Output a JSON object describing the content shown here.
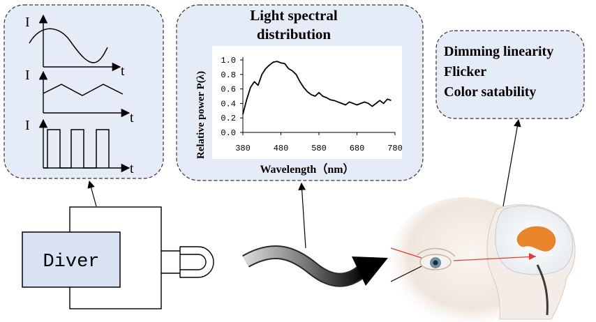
{
  "waveforms": {
    "axis_y_label": "I",
    "axis_x_label": "t",
    "types": [
      "sine",
      "triangle",
      "square"
    ]
  },
  "spectrum_panel": {
    "title_line1": "Light spectral",
    "title_line2": "distribution",
    "ylabel": "Relative power P(λ)",
    "xlabel": "Wavelength（nm）",
    "yticks": [
      "1.0",
      "0.8",
      "0.6",
      "0.4",
      "0.2",
      "0.0"
    ],
    "xticks": [
      "380",
      "480",
      "580",
      "680",
      "780"
    ]
  },
  "chart_data": {
    "type": "line",
    "xlabel": "Wavelength（nm）",
    "ylabel": "Relative power P(λ)",
    "xlim": [
      380,
      780
    ],
    "ylim": [
      0,
      1.0
    ],
    "x": [
      380,
      390,
      400,
      410,
      420,
      430,
      440,
      450,
      460,
      470,
      480,
      490,
      500,
      510,
      520,
      530,
      540,
      550,
      560,
      570,
      580,
      590,
      600,
      610,
      620,
      630,
      640,
      650,
      660,
      670,
      680,
      690,
      700,
      710,
      720,
      730,
      740,
      750,
      760,
      770
    ],
    "y": [
      0.25,
      0.45,
      0.62,
      0.7,
      0.65,
      0.8,
      0.88,
      0.93,
      0.97,
      0.98,
      0.96,
      0.95,
      0.88,
      0.85,
      0.8,
      0.7,
      0.62,
      0.56,
      0.52,
      0.5,
      0.55,
      0.5,
      0.48,
      0.45,
      0.44,
      0.42,
      0.4,
      0.38,
      0.42,
      0.4,
      0.38,
      0.4,
      0.42,
      0.4,
      0.36,
      0.4,
      0.44,
      0.4,
      0.46,
      0.44
    ]
  },
  "properties": [
    "Dimming linearity",
    "Flicker",
    "Color satability"
  ],
  "driver": {
    "label": "Diver"
  }
}
